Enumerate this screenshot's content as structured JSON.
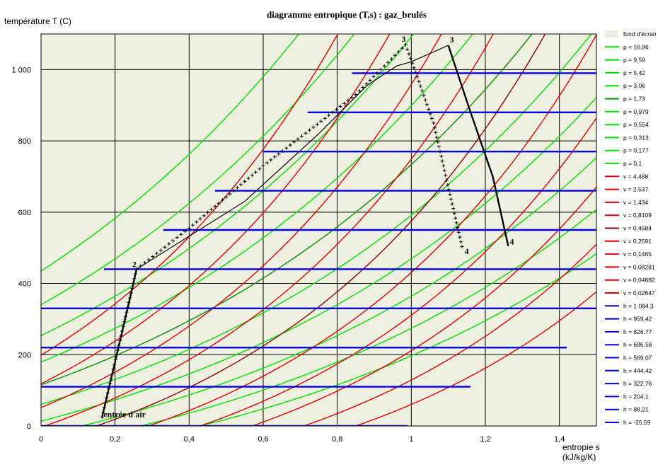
{
  "chart_data": {
    "type": "line",
    "title": "diagramme entropique (T,s) : gaz_brulés",
    "ylabel": "température  T  (C)",
    "xlabel_line1": "entropie  s",
    "xlabel_line2": "(kJ/kg/K)",
    "xlim": [
      0,
      1.5
    ],
    "ylim": [
      0,
      1100
    ],
    "x_ticks": [
      0,
      0.2,
      0.4,
      0.6,
      0.8,
      1.0,
      1.2,
      1.4
    ],
    "x_tick_labels": [
      "0",
      "0,2",
      "0,4",
      "0,6",
      "0,8",
      "1",
      "1,2",
      "1,4"
    ],
    "y_ticks": [
      0,
      200,
      400,
      600,
      800,
      1000
    ],
    "y_tick_labels": [
      "0",
      "200",
      "400",
      "600",
      "800",
      "1 000"
    ],
    "grid": true,
    "legend_placement": "right",
    "colors": {
      "background": "#f0f0e0",
      "isobar": "#00e000",
      "isobar_dark": "#009000",
      "isochore": "#e00000",
      "isochore_dark": "#8b0000",
      "isenthalp": "#0000dd",
      "cycle": "#000000"
    },
    "legend": [
      {
        "label": "fond d'écran",
        "color": "#f0f0e0"
      },
      {
        "label": "p = 16,96",
        "color": "#00e000"
      },
      {
        "label": "p = 9,59",
        "color": "#00e000"
      },
      {
        "label": "p = 5,42",
        "color": "#00e000"
      },
      {
        "label": "p = 3,06",
        "color": "#00e000"
      },
      {
        "label": "p = 1,73",
        "color": "#009000"
      },
      {
        "label": "p = 0,979",
        "color": "#00e000"
      },
      {
        "label": "p = 0,554",
        "color": "#00e000"
      },
      {
        "label": "p = 0,313",
        "color": "#00e000"
      },
      {
        "label": "p = 0,177",
        "color": "#00e000"
      },
      {
        "label": "p = 0,1",
        "color": "#00e000"
      },
      {
        "label": "v = 4,488",
        "color": "#e00000"
      },
      {
        "label": "v = 2,537",
        "color": "#e00000"
      },
      {
        "label": "v = 1,434",
        "color": "#e00000"
      },
      {
        "label": "v = 0,8109",
        "color": "#e00000"
      },
      {
        "label": "v = 0,4584",
        "color": "#8b0000"
      },
      {
        "label": "v = 0,2591",
        "color": "#e00000"
      },
      {
        "label": "v = 0,1465",
        "color": "#e00000"
      },
      {
        "label": "v = 0,08281",
        "color": "#e00000"
      },
      {
        "label": "v = 0,04682",
        "color": "#e00000"
      },
      {
        "label": "v = 0,02647",
        "color": "#e00000"
      },
      {
        "label": "h = 1 094,3",
        "color": "#0000dd"
      },
      {
        "label": "h = 959,42",
        "color": "#0000dd"
      },
      {
        "label": "h = 826,77",
        "color": "#0000dd"
      },
      {
        "label": "h = 696,58",
        "color": "#0000dd"
      },
      {
        "label": "h = 569,07",
        "color": "#0000dd"
      },
      {
        "label": "h = 444,42",
        "color": "#0000dd"
      },
      {
        "label": "h = 322,76",
        "color": "#0000dd"
      },
      {
        "label": "h = 204,1",
        "color": "#0000dd"
      },
      {
        "label": "h = 88,21",
        "color": "#0000dd"
      },
      {
        "label": "h = -25,59",
        "color": "#0000dd"
      }
    ],
    "isenthalps": [
      {
        "T": 990,
        "s_start": 0.84
      },
      {
        "T": 880,
        "s_start": 0.72
      },
      {
        "T": 770,
        "s_start": 0.6
      },
      {
        "T": 660,
        "s_start": 0.47
      },
      {
        "T": 550,
        "s_start": 0.33
      },
      {
        "T": 440,
        "s_start": 0.17
      },
      {
        "T": 330,
        "s_start": 0.0
      },
      {
        "T": 220,
        "s_start": 0.0,
        "s_end": 1.42
      },
      {
        "T": 110,
        "s_start": 0.0,
        "s_end": 1.16
      },
      {
        "T": 0,
        "s_start": 0.0,
        "s_end": 0.99
      }
    ],
    "isobar_s_at_0": [
      -1.0,
      -0.85,
      -0.69,
      -0.53,
      -0.37,
      -0.21,
      -0.05,
      0.11,
      0.27,
      0.43
    ],
    "isobar_dark_index": 4,
    "isochore_s_at_0": [
      -0.41,
      -0.27,
      -0.13,
      0.01,
      0.15,
      0.29,
      0.43,
      0.57,
      0.71,
      0.85
    ],
    "isochore_dark_index": 4,
    "cycle_real": [
      {
        "s": 0.165,
        "T": 25
      },
      {
        "s": 0.2,
        "T": 180
      },
      {
        "s": 0.245,
        "T": 380
      },
      {
        "s": 0.258,
        "T": 440
      },
      {
        "s": 0.55,
        "T": 630
      },
      {
        "s": 0.75,
        "T": 820
      },
      {
        "s": 0.88,
        "T": 955
      },
      {
        "s": 0.96,
        "T": 1010
      },
      {
        "s": 1.0,
        "T": 1022
      },
      {
        "s": 1.1,
        "T": 1068
      },
      {
        "s": 1.16,
        "T": 880
      },
      {
        "s": 1.22,
        "T": 700
      },
      {
        "s": 1.262,
        "T": 505
      }
    ],
    "cycle_ideal": [
      {
        "s": 0.165,
        "T": 25
      },
      {
        "s": 0.258,
        "T": 440
      },
      {
        "s": 0.4,
        "T": 555
      },
      {
        "s": 0.6,
        "T": 730
      },
      {
        "s": 0.85,
        "T": 930
      },
      {
        "s": 0.985,
        "T": 1070
      },
      {
        "s": 1.06,
        "T": 850
      },
      {
        "s": 1.14,
        "T": 490
      }
    ],
    "annotations": [
      {
        "text": "entrée d'air",
        "s": 0.165,
        "T": 25
      },
      {
        "text": "2",
        "s": 0.258,
        "T": 440
      },
      {
        "text": "3",
        "s": 0.985,
        "T": 1070
      },
      {
        "text": "3",
        "s": 1.1,
        "T": 1068
      },
      {
        "text": "4",
        "s": 1.14,
        "T": 490
      },
      {
        "text": "4",
        "s": 1.262,
        "T": 505
      }
    ]
  }
}
